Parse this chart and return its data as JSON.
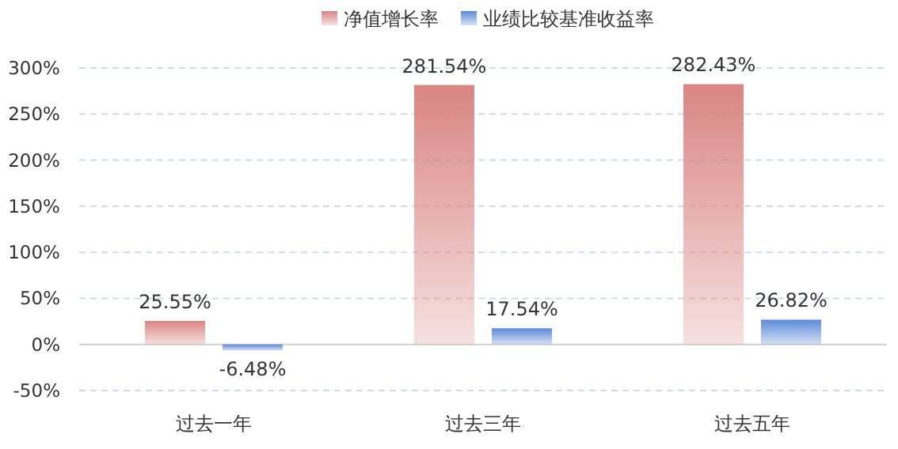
{
  "chart_data": {
    "type": "bar",
    "categories": [
      "过去一年",
      "过去三年",
      "过去五年"
    ],
    "series": [
      {
        "name": "净值增长率",
        "color": "#d98583",
        "values": [
          25.55,
          281.54,
          282.43
        ],
        "value_labels": [
          "25.55%",
          "281.54%",
          "282.43%"
        ]
      },
      {
        "name": "业绩比较基准收益率",
        "color": "#5b8ad8",
        "values": [
          -6.48,
          17.54,
          26.82
        ],
        "value_labels": [
          "-6.48%",
          "17.54%",
          "26.82%"
        ]
      }
    ],
    "ylim": [
      -50,
      300
    ],
    "yticks": [
      {
        "value": -50,
        "label": "-50%"
      },
      {
        "value": 0,
        "label": "0%"
      },
      {
        "value": 50,
        "label": "50%"
      },
      {
        "value": 100,
        "label": "100%"
      },
      {
        "value": 150,
        "label": "150%"
      },
      {
        "value": 200,
        "label": "200%"
      },
      {
        "value": 250,
        "label": "250%"
      },
      {
        "value": 300,
        "label": "300%"
      }
    ],
    "grid": "y",
    "legend": "top"
  }
}
